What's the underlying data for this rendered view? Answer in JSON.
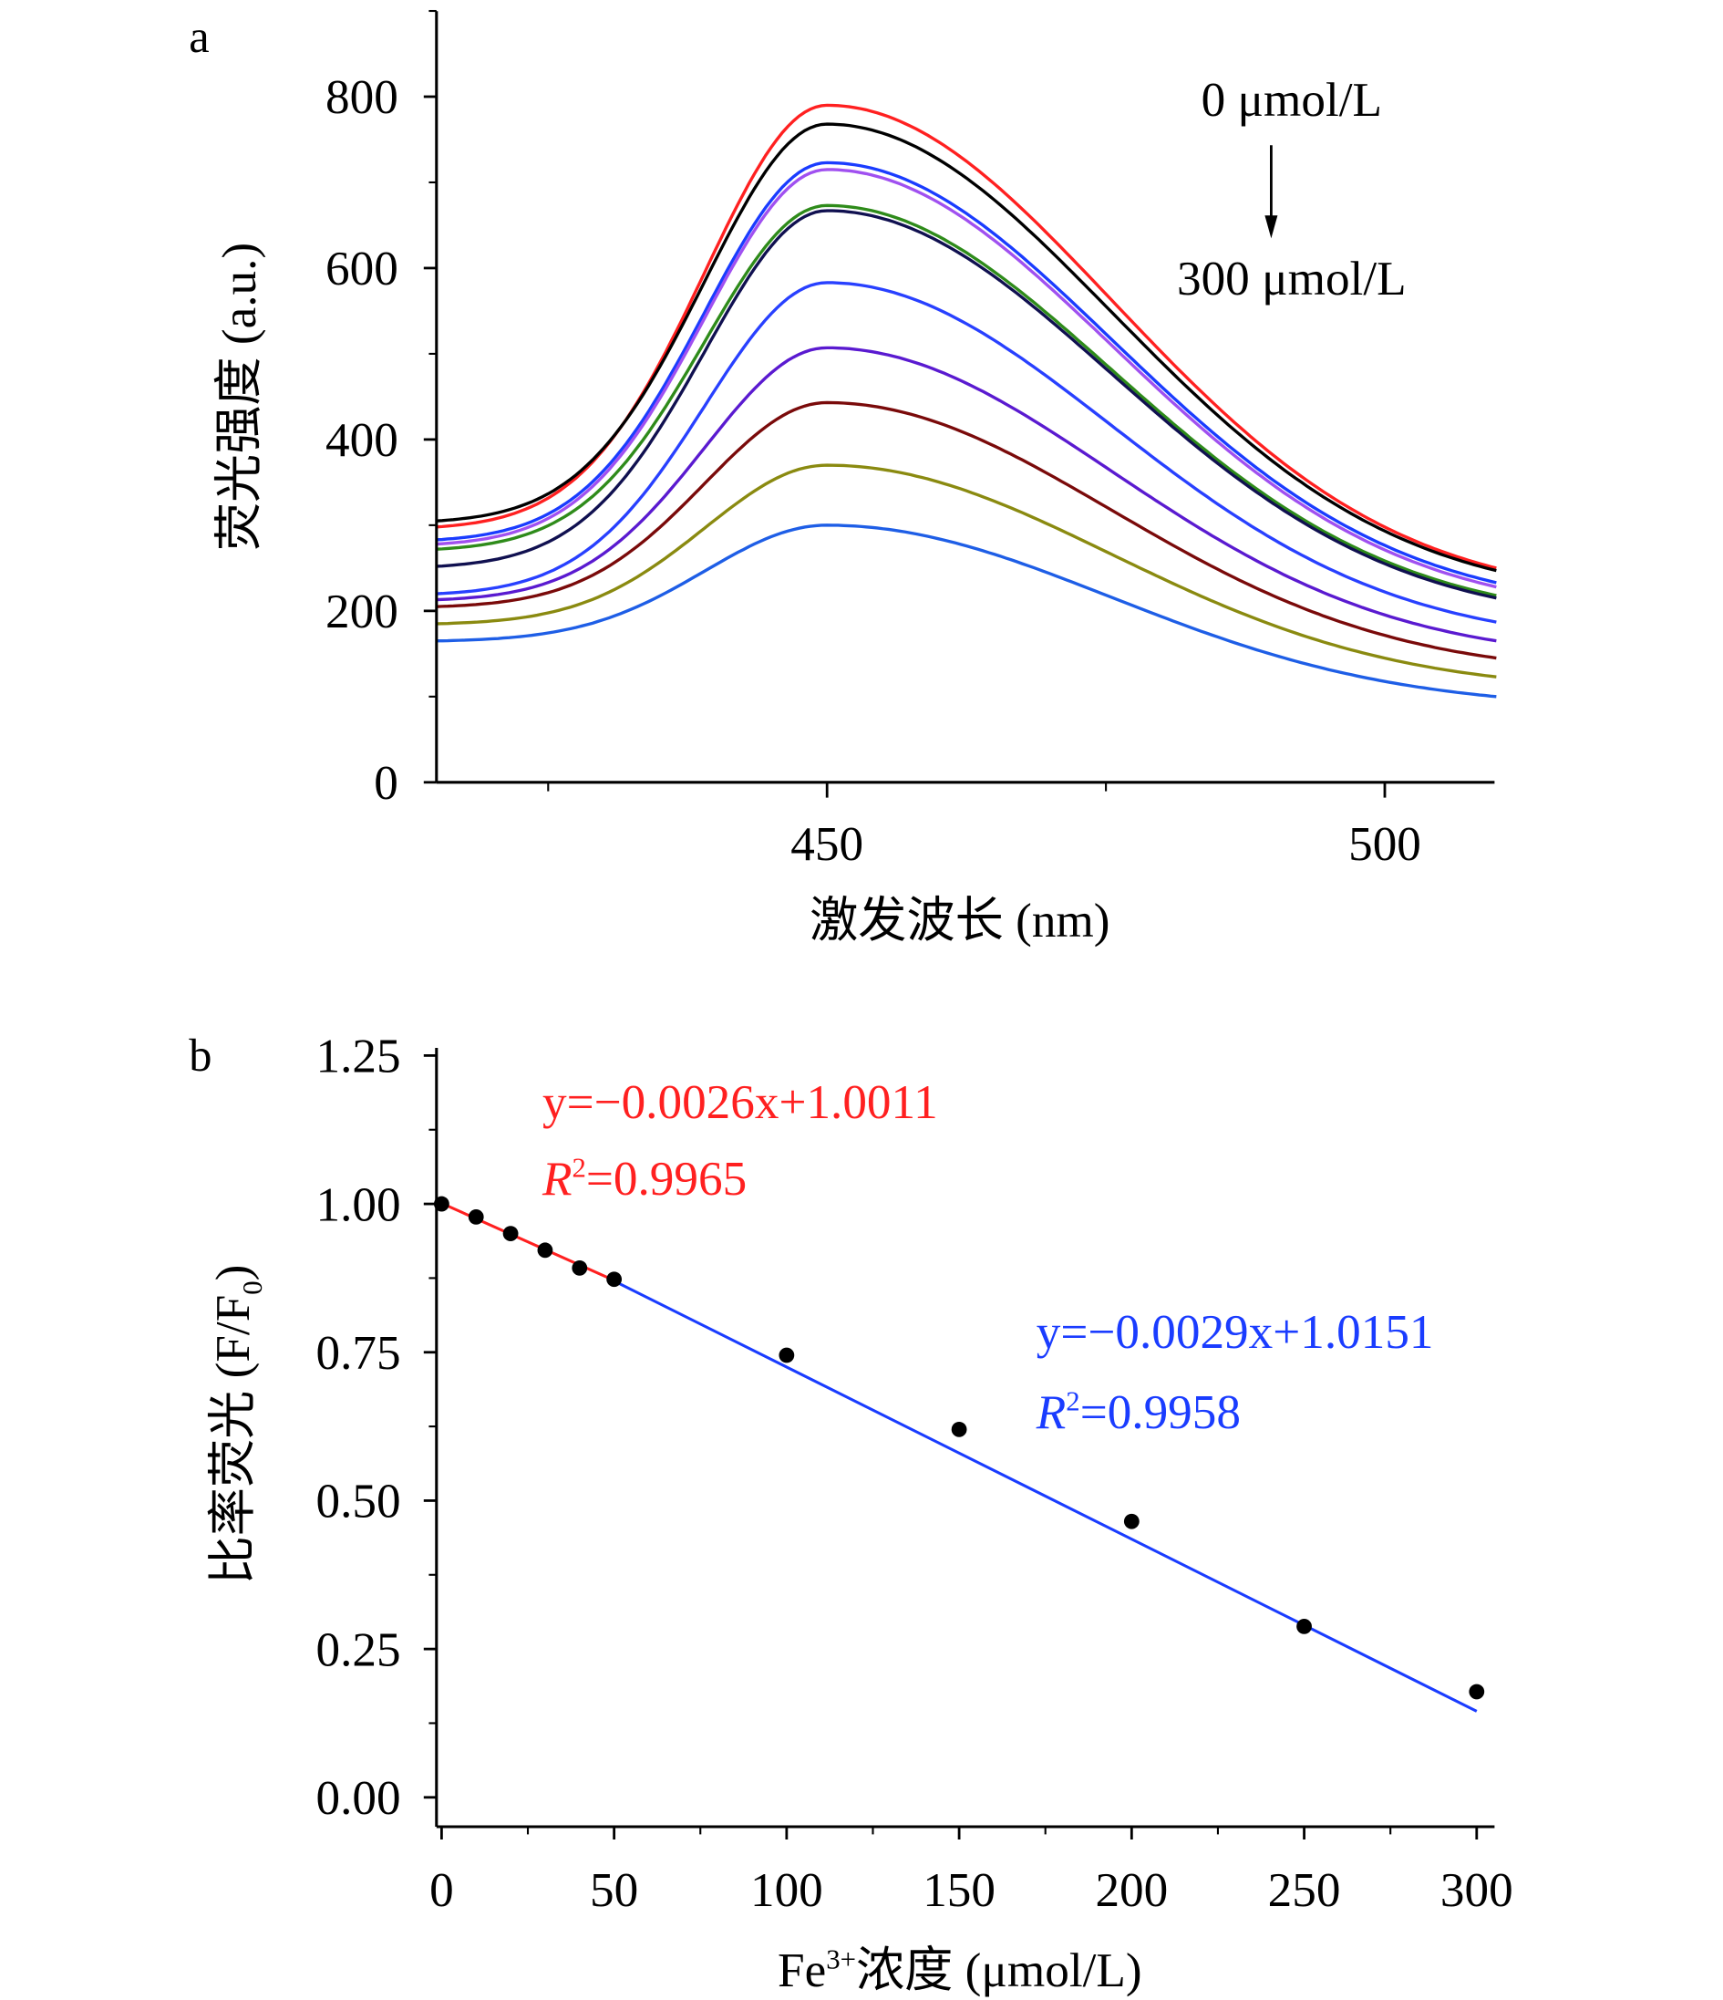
{
  "chart_data": [
    {
      "panel_label": "a",
      "type": "line",
      "title": "",
      "xlabel": "激发波长 (nm)",
      "ylabel": "荧光强度 (a.u.)",
      "xlim": [
        415,
        510
      ],
      "ylim": [
        0,
        900
      ],
      "xticks": [
        450,
        500
      ],
      "yticks": [
        0,
        200,
        400,
        600,
        800
      ],
      "grid": false,
      "annotation": {
        "top": "0 μmol/L",
        "bottom": "300 μmol/L",
        "arrow": "down"
      },
      "series": [
        {
          "name": "0 μmol/L",
          "color": "#ff2020",
          "start": 298,
          "peak": 790,
          "end": 250
        },
        {
          "name": "c2",
          "color": "#000000",
          "start": 305,
          "peak": 768,
          "end": 247
        },
        {
          "name": "c3",
          "color": "#1a3cff",
          "start": 283,
          "peak": 723,
          "end": 233
        },
        {
          "name": "c4",
          "color": "#a050f0",
          "start": 278,
          "peak": 715,
          "end": 228
        },
        {
          "name": "c5",
          "color": "#2e8b1a",
          "start": 272,
          "peak": 673,
          "end": 218
        },
        {
          "name": "c6",
          "color": "#101050",
          "start": 252,
          "peak": 667,
          "end": 215
        },
        {
          "name": "c7",
          "color": "#2840ff",
          "start": 220,
          "peak": 583,
          "end": 187
        },
        {
          "name": "c8",
          "color": "#5a1ad0",
          "start": 213,
          "peak": 507,
          "end": 165
        },
        {
          "name": "c9",
          "color": "#7a0a0a",
          "start": 205,
          "peak": 443,
          "end": 145
        },
        {
          "name": "c10",
          "color": "#8a8a10",
          "start": 185,
          "peak": 370,
          "end": 123
        },
        {
          "name": "300 μmol/L",
          "color": "#1e5ee6",
          "start": 165,
          "peak": 300,
          "end": 100
        }
      ],
      "peak_x": 450
    },
    {
      "panel_label": "b",
      "type": "scatter",
      "title": "",
      "xlabel": "Fe3+浓度 (μmol/L)",
      "ylabel": "比率荧光 (F/F0)",
      "xlim": [
        0,
        300
      ],
      "ylim": [
        0,
        1.25
      ],
      "xticks": [
        0,
        50,
        100,
        150,
        200,
        250,
        300
      ],
      "yticks": [
        0.0,
        0.25,
        0.5,
        0.75,
        1.0,
        1.25
      ],
      "grid": false,
      "points": [
        {
          "x": 0,
          "y": 1.0
        },
        {
          "x": 10,
          "y": 0.978
        },
        {
          "x": 20,
          "y": 0.95
        },
        {
          "x": 30,
          "y": 0.922
        },
        {
          "x": 40,
          "y": 0.892
        },
        {
          "x": 50,
          "y": 0.873
        },
        {
          "x": 100,
          "y": 0.745
        },
        {
          "x": 150,
          "y": 0.62
        },
        {
          "x": 200,
          "y": 0.465
        },
        {
          "x": 250,
          "y": 0.288
        },
        {
          "x": 300,
          "y": 0.178
        }
      ],
      "fits": [
        {
          "name": "fit-low",
          "color": "#ff2020",
          "slope": -0.0026,
          "intercept": 1.0011,
          "x_range": [
            0,
            50
          ],
          "equation": "y=−0.0026x+1.0011",
          "r2_label": "R",
          "r2_value": "=0.9965"
        },
        {
          "name": "fit-high",
          "color": "#1a3cff",
          "slope": -0.0029,
          "intercept": 1.0151,
          "x_range": [
            50,
            300
          ],
          "equation": "y=−0.0029x+1.0151",
          "r2_label": "R",
          "r2_value": "=0.9958"
        }
      ]
    }
  ],
  "labels": {
    "panel_a": "a",
    "panel_b": "b",
    "a_ylabel": "荧光强度 (a.u.)",
    "a_xlabel": "激发波长 (nm)",
    "a_anno_top": "0 μmol/L",
    "a_anno_bottom": "300 μmol/L",
    "b_ylabel_main": "比率荧光 (F/F",
    "b_ylabel_sub": "0",
    "b_ylabel_close": ")",
    "b_xlabel_pre": "Fe",
    "b_xlabel_sup": "3+",
    "b_xlabel_post": "浓度 (μmol/L)",
    "fit1_eq": "y=−0.0026x+1.0011",
    "fit1_r": "R",
    "fit1_sup": "2",
    "fit1_val": "=0.9965",
    "fit2_eq": "y=−0.0029x+1.0151",
    "fit2_r": "R",
    "fit2_sup": "2",
    "fit2_val": "=0.9958"
  }
}
